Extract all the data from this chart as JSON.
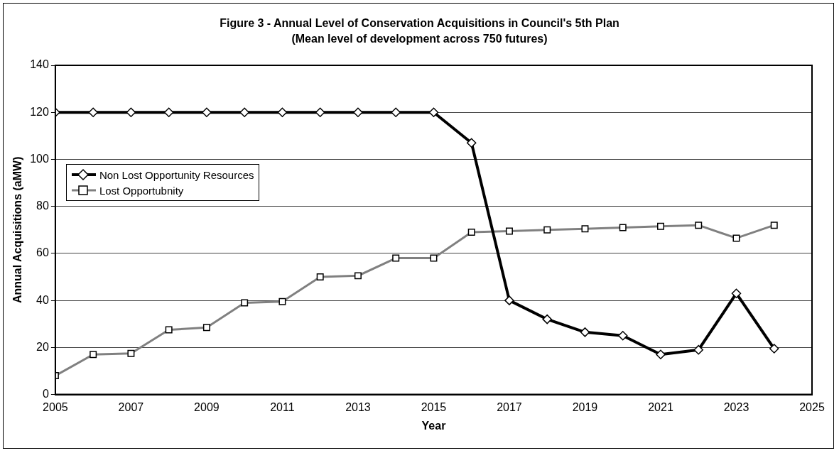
{
  "chart_data": {
    "type": "line",
    "title": "Figure 3 - Annual Level of Conservation Acquisitions in Council's 5th Plan",
    "subtitle": "(Mean level of development across 750 futures)",
    "xlabel": "Year",
    "ylabel": "Annual Acquisitions (aMW)",
    "x": [
      2005,
      2006,
      2007,
      2008,
      2009,
      2010,
      2011,
      2012,
      2013,
      2014,
      2015,
      2016,
      2017,
      2018,
      2019,
      2020,
      2021,
      2022,
      2023,
      2024
    ],
    "series": [
      {
        "name": "Non Lost Opportunity Resources",
        "color": "#000000",
        "marker": "diamond",
        "values": [
          120,
          120,
          120,
          120,
          120,
          120,
          120,
          120,
          120,
          120,
          120,
          107,
          40,
          32,
          26.5,
          25,
          17,
          19,
          43,
          19.5
        ]
      },
      {
        "name": "Lost Opportubnity",
        "color": "#808080",
        "marker": "square",
        "values": [
          8,
          17,
          17.5,
          27.5,
          28.5,
          39,
          39.5,
          50,
          50.5,
          58,
          58,
          69,
          69.5,
          70,
          70.5,
          71,
          71.5,
          72,
          66.5,
          72
        ]
      }
    ],
    "xlim": [
      2005,
      2025
    ],
    "xticks": [
      2005,
      2007,
      2009,
      2011,
      2013,
      2015,
      2017,
      2019,
      2021,
      2023,
      2025
    ],
    "ylim": [
      0,
      140
    ],
    "yticks": [
      0,
      20,
      40,
      60,
      80,
      100,
      120,
      140
    ],
    "grid": "y",
    "legend": "left",
    "line_style": "solid"
  }
}
